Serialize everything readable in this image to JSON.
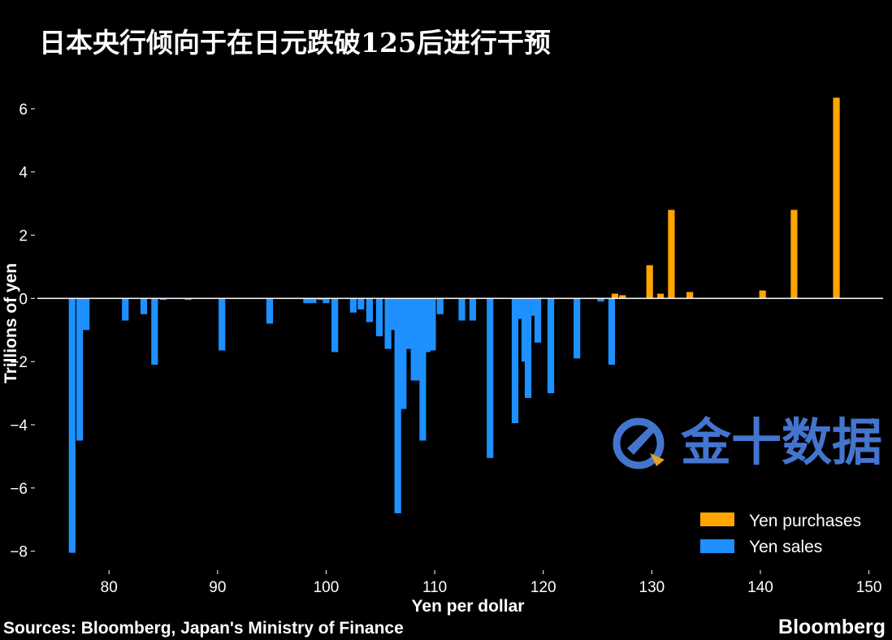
{
  "title": "日本央行倾向于在日元跌破125后进行干预",
  "source": "Sources: Bloomberg, Japan's Ministry of Finance",
  "brand": "Bloomberg",
  "watermark": {
    "text": "金十数据",
    "registered": "®"
  },
  "colors": {
    "purchases": "#FFA500",
    "sales": "#1E90FF",
    "zero_line": "#FFFFFF",
    "background": "#000000"
  },
  "chart_data": {
    "type": "bar",
    "xlabel": "Yen per dollar",
    "ylabel": "Trillions of yen",
    "xlim": [
      73.4,
      151.3
    ],
    "ylim": [
      -8.6,
      7.0
    ],
    "xticks": [
      80,
      90,
      100,
      110,
      120,
      130,
      140,
      150
    ],
    "yticks": [
      -8,
      -6,
      -4,
      -2,
      0,
      2,
      4,
      6
    ],
    "ytick_labels": [
      "−8",
      "−6",
      "−4",
      "−2",
      "0",
      "2",
      "4",
      "6"
    ],
    "grid": false,
    "legend_position": "bottom-right",
    "legend": [
      "Yen purchases",
      "Yen sales"
    ],
    "series": [
      {
        "name": "Yen purchases",
        "color": "#FFA500",
        "points": [
          {
            "x": 126.6,
            "y": 0.15
          },
          {
            "x": 127.3,
            "y": 0.1
          },
          {
            "x": 129.8,
            "y": 1.05
          },
          {
            "x": 130.8,
            "y": 0.15
          },
          {
            "x": 131.8,
            "y": 2.8
          },
          {
            "x": 133.5,
            "y": 0.2
          },
          {
            "x": 140.2,
            "y": 0.25
          },
          {
            "x": 143.1,
            "y": 2.8
          },
          {
            "x": 147.0,
            "y": 6.35
          }
        ]
      },
      {
        "name": "Yen sales",
        "color": "#1E90FF",
        "points": [
          {
            "x": 76.6,
            "y": -8.05
          },
          {
            "x": 77.3,
            "y": -4.5
          },
          {
            "x": 77.9,
            "y": -1.0
          },
          {
            "x": 81.5,
            "y": -0.7
          },
          {
            "x": 83.2,
            "y": -0.5
          },
          {
            "x": 84.2,
            "y": -2.1
          },
          {
            "x": 85.0,
            "y": -0.05
          },
          {
            "x": 87.3,
            "y": -0.05
          },
          {
            "x": 90.4,
            "y": -1.65
          },
          {
            "x": 94.8,
            "y": -0.8
          },
          {
            "x": 98.2,
            "y": -0.15
          },
          {
            "x": 98.8,
            "y": -0.15
          },
          {
            "x": 99.5,
            "y": -0.05
          },
          {
            "x": 100.0,
            "y": -0.15
          },
          {
            "x": 100.8,
            "y": -1.7
          },
          {
            "x": 102.5,
            "y": -0.45
          },
          {
            "x": 103.2,
            "y": -0.35
          },
          {
            "x": 104.0,
            "y": -0.75
          },
          {
            "x": 104.9,
            "y": -1.2
          },
          {
            "x": 105.7,
            "y": -1.6
          },
          {
            "x": 106.3,
            "y": -1.0
          },
          {
            "x": 106.6,
            "y": -6.8
          },
          {
            "x": 107.1,
            "y": -3.5
          },
          {
            "x": 107.6,
            "y": -1.6
          },
          {
            "x": 108.1,
            "y": -2.6
          },
          {
            "x": 108.5,
            "y": -2.6
          },
          {
            "x": 108.9,
            "y": -4.5
          },
          {
            "x": 109.3,
            "y": -1.7
          },
          {
            "x": 109.8,
            "y": -1.65
          },
          {
            "x": 110.5,
            "y": -0.5
          },
          {
            "x": 112.5,
            "y": -0.7
          },
          {
            "x": 113.5,
            "y": -0.7
          },
          {
            "x": 115.1,
            "y": -5.05
          },
          {
            "x": 117.4,
            "y": -3.95
          },
          {
            "x": 117.9,
            "y": -0.65
          },
          {
            "x": 118.3,
            "y": -2.0
          },
          {
            "x": 118.6,
            "y": -3.15
          },
          {
            "x": 119.0,
            "y": -0.55
          },
          {
            "x": 119.5,
            "y": -1.4
          },
          {
            "x": 120.7,
            "y": -3.0
          },
          {
            "x": 123.1,
            "y": -1.9
          },
          {
            "x": 125.3,
            "y": -0.1
          },
          {
            "x": 126.3,
            "y": -2.1
          }
        ]
      }
    ]
  }
}
